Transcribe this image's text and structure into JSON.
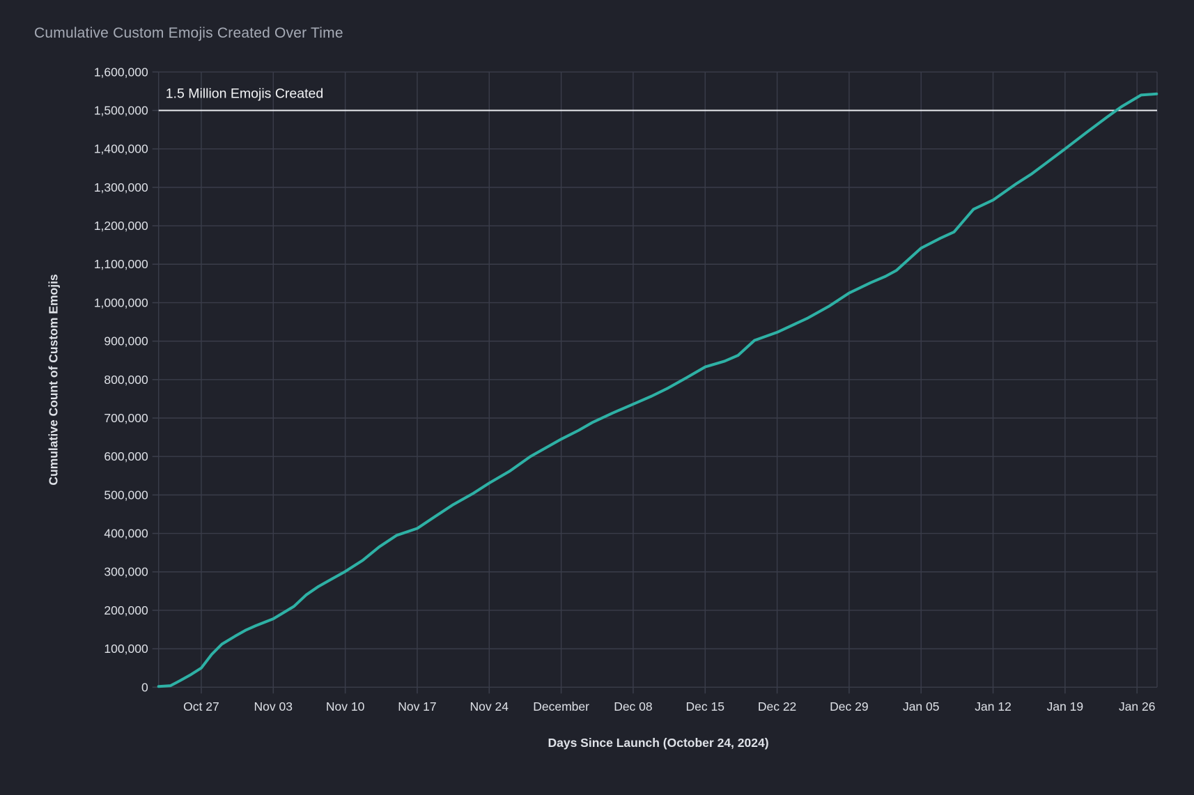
{
  "title": "Cumulative Custom Emojis Created Over Time",
  "colors": {
    "background": "#20222b",
    "grid": "#3a3d4a",
    "line": "#2eb1a5",
    "annotation_line": "#eceef2",
    "annotation_text": "#f2f3f5",
    "tick_text": "#dde0e6",
    "title_text": "#a6abb6"
  },
  "chart_data": {
    "type": "line",
    "title": "Cumulative Custom Emojis Created Over Time",
    "xlabel": "Days Since Launch (October 24, 2024)",
    "ylabel": "Cumulative Count of Custom Emojis",
    "launch_date": "October 24, 2024",
    "xlim_days": [
      -1.15,
      95.95
    ],
    "ylim": [
      0,
      1600000
    ],
    "grid": true,
    "legend": false,
    "x_ticks": [
      {
        "day": 3,
        "label": "Oct 27"
      },
      {
        "day": 10,
        "label": "Nov 03"
      },
      {
        "day": 17,
        "label": "Nov 10"
      },
      {
        "day": 24,
        "label": "Nov 17"
      },
      {
        "day": 31,
        "label": "Nov 24"
      },
      {
        "day": 38,
        "label": "December"
      },
      {
        "day": 45,
        "label": "Dec 08"
      },
      {
        "day": 52,
        "label": "Dec 15"
      },
      {
        "day": 59,
        "label": "Dec 22"
      },
      {
        "day": 66,
        "label": "Dec 29"
      },
      {
        "day": 73,
        "label": "Jan 05"
      },
      {
        "day": 80,
        "label": "Jan 12"
      },
      {
        "day": 87,
        "label": "Jan 19"
      },
      {
        "day": 94,
        "label": "Jan 26"
      }
    ],
    "y_ticks": [
      {
        "value": 0,
        "label": "0"
      },
      {
        "value": 100000,
        "label": "100,000"
      },
      {
        "value": 200000,
        "label": "200,000"
      },
      {
        "value": 300000,
        "label": "300,000"
      },
      {
        "value": 400000,
        "label": "400,000"
      },
      {
        "value": 500000,
        "label": "500,000"
      },
      {
        "value": 600000,
        "label": "600,000"
      },
      {
        "value": 700000,
        "label": "700,000"
      },
      {
        "value": 800000,
        "label": "800,000"
      },
      {
        "value": 900000,
        "label": "900,000"
      },
      {
        "value": 1000000,
        "label": "1,000,000"
      },
      {
        "value": 1100000,
        "label": "1,100,000"
      },
      {
        "value": 1200000,
        "label": "1,200,000"
      },
      {
        "value": 1300000,
        "label": "1,300,000"
      },
      {
        "value": 1400000,
        "label": "1,400,000"
      },
      {
        "value": 1500000,
        "label": "1,500,000"
      },
      {
        "value": 1600000,
        "label": "1,600,000"
      }
    ],
    "annotation": {
      "y": 1500000,
      "label": "1.5 Million Emojis Created"
    },
    "series": [
      {
        "name": "Cumulative Custom Emojis",
        "color": "#2eb1a5",
        "points": [
          [
            -1.15,
            2000
          ],
          [
            0,
            4000
          ],
          [
            1,
            18000
          ],
          [
            2,
            33000
          ],
          [
            3,
            50000
          ],
          [
            4,
            85000
          ],
          [
            5,
            112000
          ],
          [
            6.3,
            133000
          ],
          [
            7.3,
            148000
          ],
          [
            8.3,
            160000
          ],
          [
            10,
            178000
          ],
          [
            12,
            210000
          ],
          [
            13.2,
            240000
          ],
          [
            14.4,
            262000
          ],
          [
            15.6,
            280000
          ],
          [
            17,
            301000
          ],
          [
            18.7,
            330000
          ],
          [
            20.3,
            365000
          ],
          [
            22,
            395000
          ],
          [
            24,
            413000
          ],
          [
            25.8,
            445000
          ],
          [
            27.5,
            475000
          ],
          [
            29.5,
            505000
          ],
          [
            31,
            531000
          ],
          [
            33,
            562000
          ],
          [
            35,
            600000
          ],
          [
            37,
            630000
          ],
          [
            38,
            645000
          ],
          [
            39.7,
            668000
          ],
          [
            41,
            688000
          ],
          [
            43,
            713000
          ],
          [
            45,
            736000
          ],
          [
            46.8,
            757000
          ],
          [
            48.4,
            778000
          ],
          [
            50.2,
            805000
          ],
          [
            52,
            833000
          ],
          [
            53.9,
            848000
          ],
          [
            55.2,
            863000
          ],
          [
            56.8,
            902000
          ],
          [
            59,
            923000
          ],
          [
            61.9,
            959000
          ],
          [
            64,
            990000
          ],
          [
            66,
            1025000
          ],
          [
            68.1,
            1052000
          ],
          [
            69.5,
            1068000
          ],
          [
            70.6,
            1084000
          ],
          [
            73,
            1142000
          ],
          [
            74.9,
            1168000
          ],
          [
            76.2,
            1184000
          ],
          [
            78.1,
            1243000
          ],
          [
            80,
            1267000
          ],
          [
            82.3,
            1310000
          ],
          [
            83.7,
            1334000
          ],
          [
            85,
            1360000
          ],
          [
            87,
            1400000
          ],
          [
            89.1,
            1443000
          ],
          [
            91.1,
            1483000
          ],
          [
            92.5,
            1510000
          ],
          [
            94.4,
            1540000
          ],
          [
            95.9,
            1543000
          ]
        ]
      }
    ]
  }
}
